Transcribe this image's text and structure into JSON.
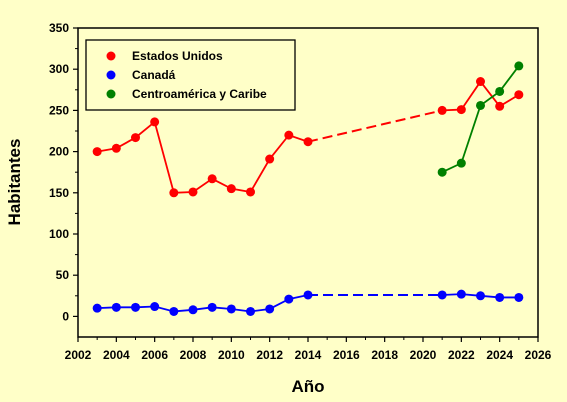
{
  "chart_data": {
    "type": "line",
    "title": "",
    "xlabel": "Año",
    "ylabel": "Habitantes",
    "xlim": [
      2002,
      2026
    ],
    "ylim": [
      -25,
      350
    ],
    "xticks": [
      2002,
      2004,
      2006,
      2008,
      2010,
      2012,
      2014,
      2016,
      2018,
      2020,
      2022,
      2024,
      2026
    ],
    "yticks": [
      0,
      50,
      100,
      150,
      200,
      250,
      300,
      350
    ],
    "grid": false,
    "legend_position": "top-left",
    "series": [
      {
        "name": "Estados Unidos",
        "color": "#ff0000",
        "segments": [
          {
            "style": "solid",
            "x": [
              2003,
              2004,
              2005,
              2006,
              2007,
              2008,
              2009,
              2010,
              2011,
              2012,
              2013,
              2014
            ],
            "y": [
              200,
              204,
              217,
              236,
              150,
              151,
              167,
              155,
              151,
              191,
              220,
              212
            ]
          },
          {
            "style": "dashed",
            "x": [
              2014,
              2021
            ],
            "y": [
              212,
              250
            ]
          },
          {
            "style": "solid",
            "x": [
              2021,
              2022,
              2023,
              2024,
              2025
            ],
            "y": [
              250,
              251,
              285,
              255,
              269
            ]
          }
        ]
      },
      {
        "name": "Canadá",
        "color": "#0000ff",
        "segments": [
          {
            "style": "solid",
            "x": [
              2003,
              2004,
              2005,
              2006,
              2007,
              2008,
              2009,
              2010,
              2011,
              2012,
              2013,
              2014
            ],
            "y": [
              10,
              11,
              11,
              12,
              6,
              8,
              11,
              9,
              6,
              9,
              21,
              26
            ]
          },
          {
            "style": "dashed",
            "x": [
              2014,
              2021
            ],
            "y": [
              26,
              26
            ]
          },
          {
            "style": "solid",
            "x": [
              2021,
              2022,
              2023,
              2024,
              2025
            ],
            "y": [
              26,
              27,
              25,
              23,
              23
            ]
          }
        ]
      },
      {
        "name": "Centroamérica y Caribe",
        "color": "#008000",
        "segments": [
          {
            "style": "solid",
            "x": [
              2021,
              2022,
              2023,
              2024,
              2025
            ],
            "y": [
              175,
              186,
              256,
              273,
              304
            ]
          }
        ]
      }
    ]
  }
}
